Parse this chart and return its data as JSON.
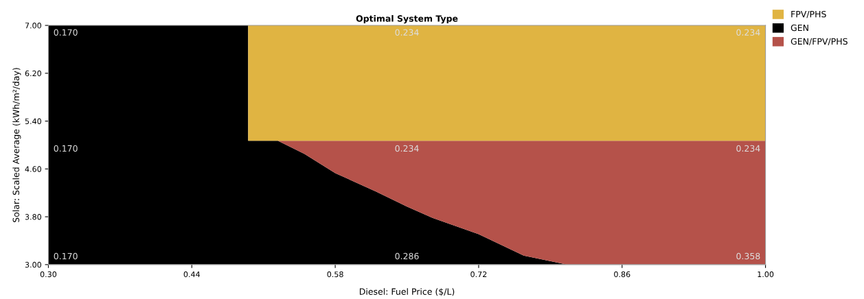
{
  "chart_data": {
    "type": "area",
    "title": "Optimal System Type",
    "xlabel": "Diesel: Fuel Price ($/L)",
    "ylabel": "Solar: Scaled Average (kWh/m²/day)",
    "x": [
      0.3,
      0.495,
      0.495,
      0.524,
      0.55,
      0.58,
      0.62,
      0.65,
      0.675,
      0.72,
      0.764,
      0.806,
      1.0
    ],
    "series": [
      {
        "name": "GEN",
        "color": "#000000",
        "values": [
          7.0,
          7.0,
          5.07,
          5.07,
          4.85,
          4.53,
          4.22,
          3.97,
          3.78,
          3.51,
          3.15,
          3.0,
          3.0
        ]
      },
      {
        "name": "GEN/FPV/PHS",
        "color": "#b5524a",
        "values": [
          null,
          null,
          null,
          5.07,
          5.07,
          5.07,
          5.07,
          5.07,
          5.07,
          5.07,
          5.07,
          5.07,
          5.07
        ]
      },
      {
        "name": "FPV/PHS",
        "color": "#e0b442",
        "values": [
          null,
          null,
          7.0,
          7.0,
          7.0,
          7.0,
          7.0,
          7.0,
          7.0,
          7.0,
          7.0,
          7.0,
          7.0
        ]
      }
    ],
    "xlim": [
      0.3,
      1.0
    ],
    "xticks": [
      {
        "value": 0.3,
        "label": "0.30"
      },
      0.44,
      0.58,
      0.72,
      0.86,
      {
        "value": 1.0,
        "label": "1.00"
      }
    ],
    "ylim": [
      3.0,
      7.0
    ],
    "yticks": [
      {
        "value": 3.0,
        "label": "3.00"
      },
      {
        "value": 3.8,
        "label": "3.80"
      },
      {
        "value": 4.6,
        "label": "4.60"
      },
      {
        "value": 5.4,
        "label": "5.40"
      },
      {
        "value": 6.2,
        "label": "6.20"
      },
      {
        "value": 7.0,
        "label": "7.00"
      }
    ],
    "annotations": [
      "0.170",
      "0.234",
      "0.234",
      "0.170",
      "0.234",
      "0.234",
      "0.170",
      "0.286",
      "0.358"
    ],
    "legend": "top right",
    "grid": false
  }
}
